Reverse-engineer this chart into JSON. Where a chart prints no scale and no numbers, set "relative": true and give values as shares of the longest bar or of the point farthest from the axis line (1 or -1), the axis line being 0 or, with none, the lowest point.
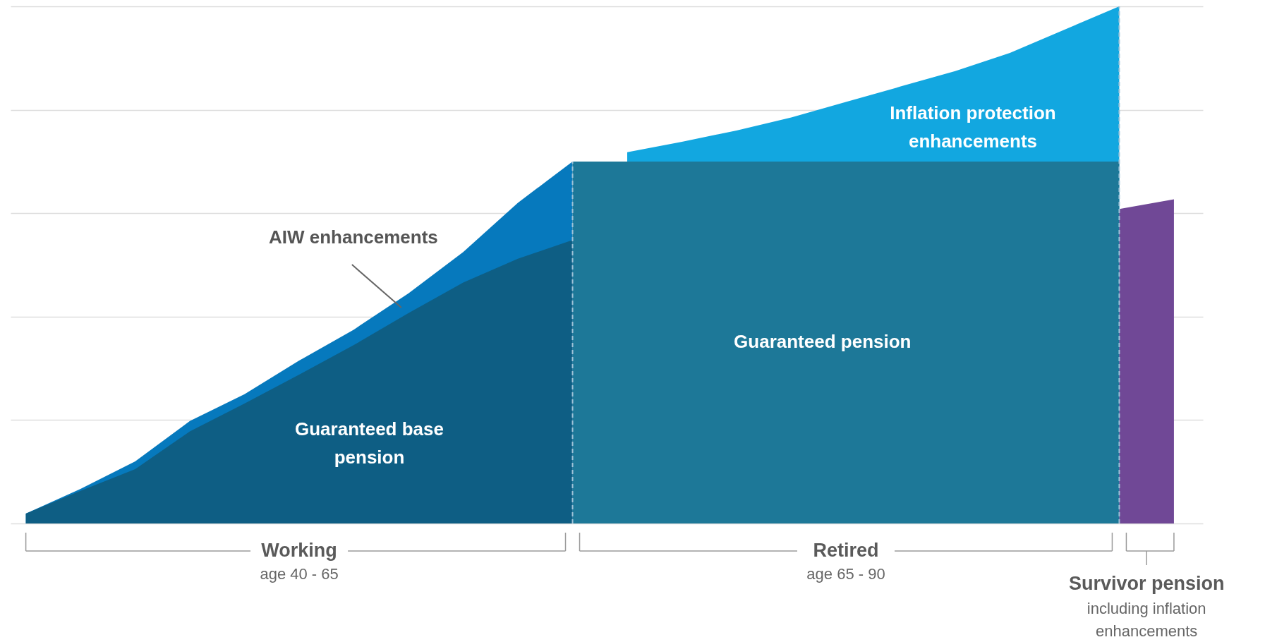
{
  "chart_data": {
    "type": "area",
    "relative": true,
    "grid": "y",
    "categories": [
      null,
      null,
      null,
      null,
      null,
      null,
      null,
      null,
      null,
      null,
      null,
      null,
      null,
      null,
      null,
      null,
      null,
      null,
      null,
      null,
      null,
      null
    ],
    "series": [
      {
        "name": "AIW enhancements",
        "color": "#0679bd",
        "values": [
          0.019,
          0.067,
          0.12,
          0.198,
          0.25,
          0.315,
          0.375,
          0.445,
          0.525,
          0.62,
          0.7,
          null,
          null,
          null,
          null,
          null,
          null,
          null,
          null,
          null,
          null,
          null
        ]
      },
      {
        "name": "Guaranteed base pension",
        "color": "#0e5e84",
        "values": [
          0.019,
          0.063,
          0.105,
          0.178,
          0.232,
          0.288,
          0.345,
          0.407,
          0.466,
          0.512,
          0.548,
          null,
          null,
          null,
          null,
          null,
          null,
          null,
          null,
          null,
          null,
          null
        ]
      },
      {
        "name": "Inflation protection enhancements",
        "color": "#12a7e0",
        "values": [
          null,
          null,
          null,
          null,
          null,
          null,
          null,
          null,
          null,
          null,
          null,
          0.718,
          0.738,
          0.76,
          0.785,
          0.815,
          0.845,
          0.875,
          0.91,
          0.955,
          1.0,
          null
        ]
      },
      {
        "name": "Guaranteed pension",
        "color": "#1d7898",
        "values": [
          null,
          null,
          null,
          null,
          null,
          null,
          null,
          null,
          null,
          null,
          0.7,
          0.7,
          0.7,
          0.7,
          0.7,
          0.7,
          0.7,
          0.7,
          0.7,
          0.7,
          0.7,
          null
        ]
      },
      {
        "color": "#704896",
        "values": [
          null,
          null,
          null,
          null,
          null,
          null,
          null,
          null,
          null,
          null,
          null,
          null,
          null,
          null,
          null,
          null,
          null,
          null,
          null,
          null,
          0.608,
          0.627
        ]
      }
    ],
    "annotations": [
      "Working",
      "age 40 - 65",
      "Retired",
      "age 65 - 90",
      "Survivor pension",
      "including inflation enhancements"
    ]
  }
}
